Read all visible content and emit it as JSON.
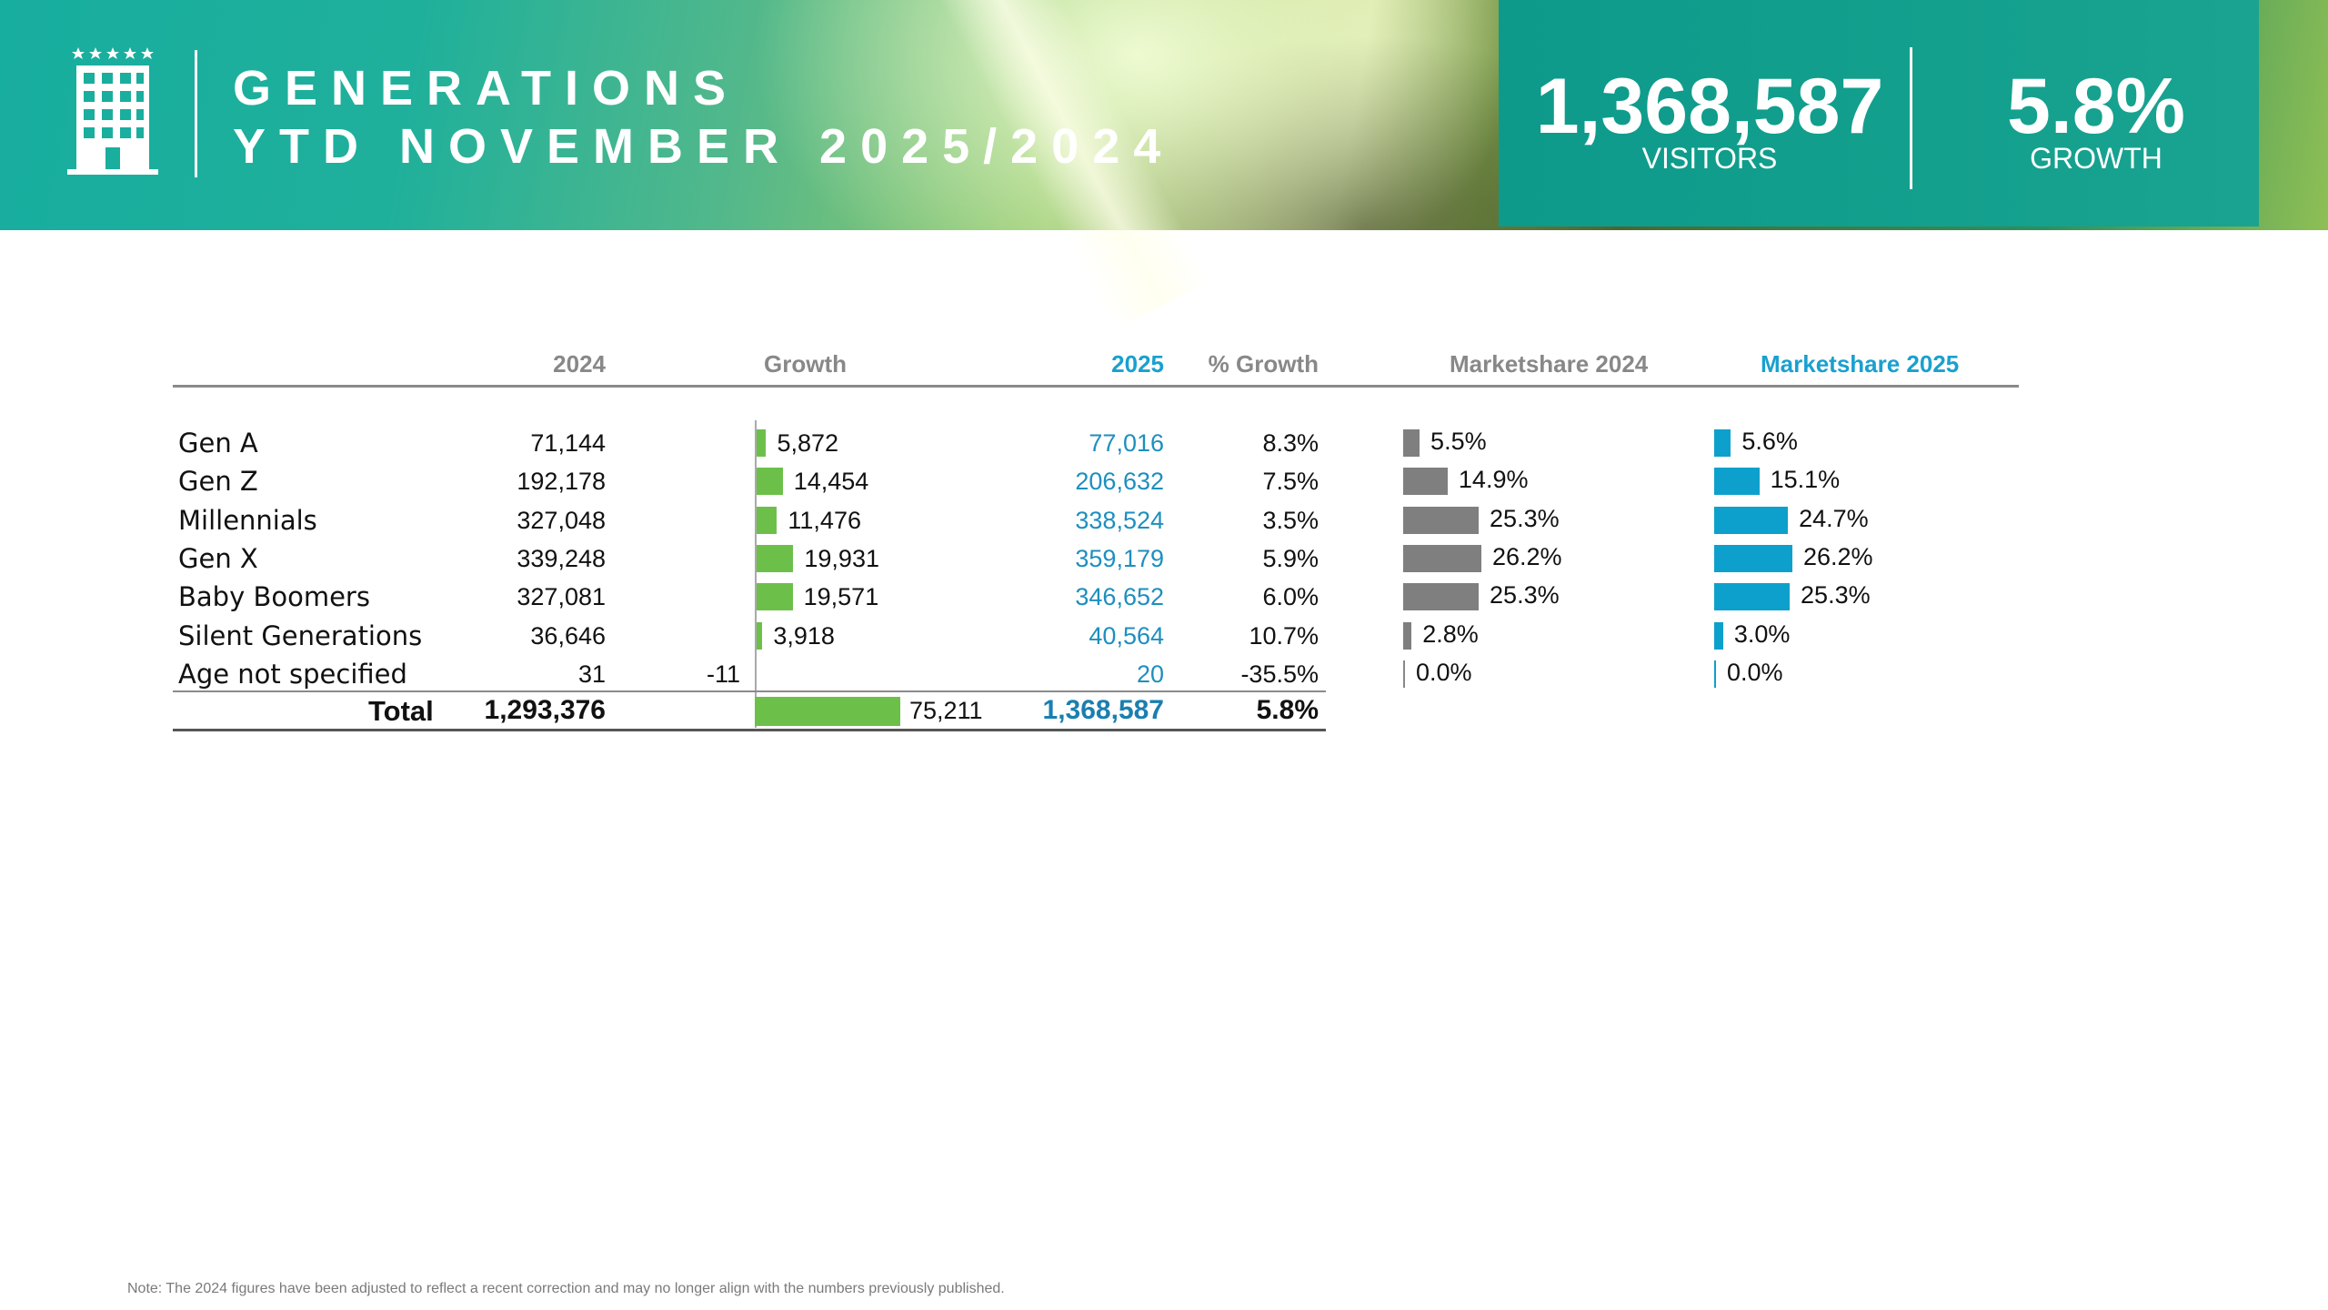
{
  "header": {
    "title_line1": "GENERATIONS",
    "title_line2": "YTD NOVEMBER 2025/2024",
    "visitors_value": "1,368,587",
    "visitors_label": "VISITORS",
    "growth_value": "5.8%",
    "growth_label": "GROWTH"
  },
  "columns": {
    "y2024": "2024",
    "growth": "Growth",
    "y2025": "2025",
    "pct_growth": "% Growth",
    "ms2024": "Marketshare 2024",
    "ms2025": "Marketshare 2025"
  },
  "colors": {
    "growth_bar": "#6cc04a",
    "ms2024_bar": "#7f7f7f",
    "ms2025_bar": "#0ea0cc",
    "teal": "#13a08d"
  },
  "chart_data": {
    "type": "table",
    "title": "GENERATIONS YTD NOVEMBER 2025/2024",
    "rows": [
      {
        "label": "Gen A",
        "v2024": "71,144",
        "growth": 5872,
        "growth_label": "5,872",
        "v2025": "77,016",
        "pct": "8.3%",
        "ms2024": 5.5,
        "ms2024_label": "5.5%",
        "ms2025": 5.6,
        "ms2025_label": "5.6%"
      },
      {
        "label": "Gen Z",
        "v2024": "192,178",
        "growth": 14454,
        "growth_label": "14,454",
        "v2025": "206,632",
        "pct": "7.5%",
        "ms2024": 14.9,
        "ms2024_label": "14.9%",
        "ms2025": 15.1,
        "ms2025_label": "15.1%"
      },
      {
        "label": "Millennials",
        "v2024": "327,048",
        "growth": 11476,
        "growth_label": "11,476",
        "v2025": "338,524",
        "pct": "3.5%",
        "ms2024": 25.3,
        "ms2024_label": "25.3%",
        "ms2025": 24.7,
        "ms2025_label": "24.7%"
      },
      {
        "label": "Gen X",
        "v2024": "339,248",
        "growth": 19931,
        "growth_label": "19,931",
        "v2025": "359,179",
        "pct": "5.9%",
        "ms2024": 26.2,
        "ms2024_label": "26.2%",
        "ms2025": 26.2,
        "ms2025_label": "26.2%"
      },
      {
        "label": "Baby Boomers",
        "v2024": "327,081",
        "growth": 19571,
        "growth_label": "19,571",
        "v2025": "346,652",
        "pct": "6.0%",
        "ms2024": 25.3,
        "ms2024_label": "25.3%",
        "ms2025": 25.3,
        "ms2025_label": "25.3%"
      },
      {
        "label": "Silent Generations",
        "v2024": "36,646",
        "growth": 3918,
        "growth_label": "3,918",
        "v2025": "40,564",
        "pct": "10.7%",
        "ms2024": 2.8,
        "ms2024_label": "2.8%",
        "ms2025": 3.0,
        "ms2025_label": "3.0%"
      },
      {
        "label": "Age not specified",
        "v2024": "31",
        "growth": -11,
        "growth_label": "-11",
        "v2025": "20",
        "pct": "-35.5%",
        "ms2024": 0.0,
        "ms2024_label": "0.0%",
        "ms2025": 0.0,
        "ms2025_label": "0.0%"
      }
    ],
    "total": {
      "label": "Total",
      "v2024": "1,293,376",
      "growth": 75211,
      "growth_label": "75,211",
      "v2025": "1,368,587",
      "pct": "5.8%"
    }
  },
  "note": "Note: The 2024 figures have been adjusted to reflect a recent correction and may no longer align with the numbers previously published."
}
